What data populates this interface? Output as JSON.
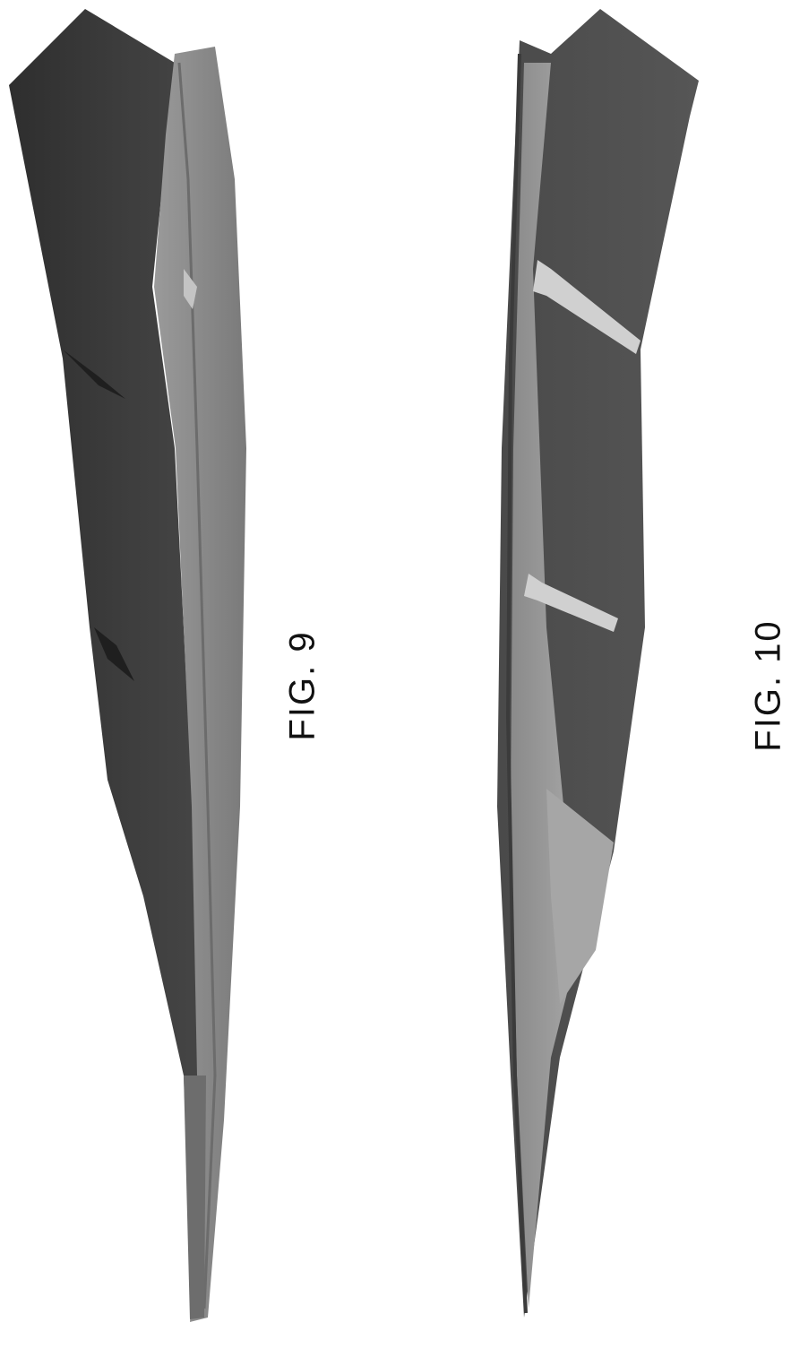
{
  "figures": [
    {
      "label": "FIG. 9",
      "description_colors": {
        "outer_shell": "#3c3c3c",
        "inner_edge": "#8e8e8e",
        "groove_highlight": "#bdbdbd"
      }
    },
    {
      "label": "FIG. 10",
      "description_colors": {
        "outer_shell": "#4d4d4d",
        "inner_face": "#939393",
        "slot_highlight": "#d0d0d0"
      }
    }
  ],
  "background": "#ffffff"
}
